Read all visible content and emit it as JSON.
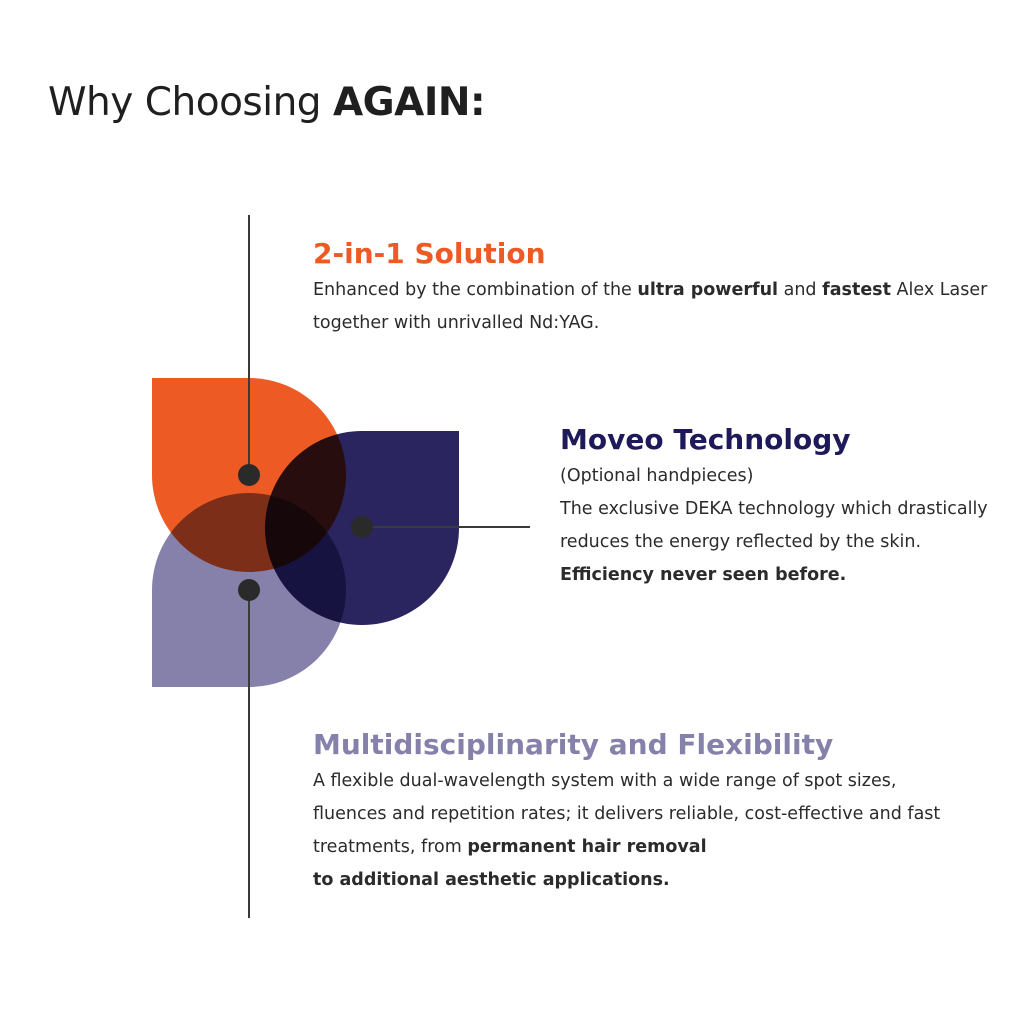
{
  "title": {
    "prefix": "Why Choosing ",
    "brand": "AGAIN:"
  },
  "colors": {
    "orange": "#EE5A24",
    "navy": "#2A245F",
    "lavender": "#8681AA"
  },
  "features": [
    {
      "heading": "2-in-1 Solution",
      "parts": [
        "Enhanced by the combination of the ",
        "ultra powerful",
        " and ",
        "fastest",
        " Alex Laser together with unrivalled Nd:YAG."
      ]
    },
    {
      "heading": "Moveo Technology",
      "subtitle": "(Optional handpieces)",
      "parts": [
        "The exclusive DEKA technology which drastically reduces the energy reflected by the skin. ",
        "Efficiency never seen before."
      ]
    },
    {
      "heading": "Multidisciplinarity and Flexibility",
      "parts": [
        "A flexible dual-wavelength system with a wide range of spot sizes, fluences and repetition rates; it delivers reliable, cost-effective and fast treatments, from ",
        "permanent hair removal",
        "to additional aesthetic applications."
      ]
    }
  ]
}
